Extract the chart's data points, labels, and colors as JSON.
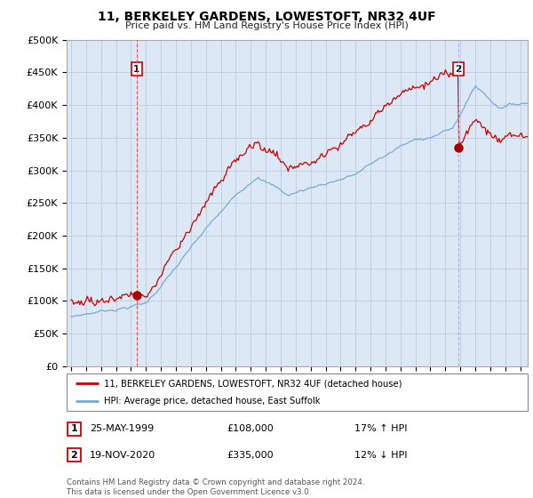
{
  "title": "11, BERKELEY GARDENS, LOWESTOFT, NR32 4UF",
  "subtitle": "Price paid vs. HM Land Registry's House Price Index (HPI)",
  "ylabel_ticks": [
    "£0",
    "£50K",
    "£100K",
    "£150K",
    "£200K",
    "£250K",
    "£300K",
    "£350K",
    "£400K",
    "£450K",
    "£500K"
  ],
  "ytick_values": [
    0,
    50000,
    100000,
    150000,
    200000,
    250000,
    300000,
    350000,
    400000,
    450000,
    500000
  ],
  "ylim": [
    0,
    500000
  ],
  "xlim_start": 1994.7,
  "xlim_end": 2025.5,
  "sale1_year": 1999.38,
  "sale1_price": 108000,
  "sale1_label": "1",
  "sale1_date": "25-MAY-1999",
  "sale1_hpi_pct": "17% ↑ HPI",
  "sale2_year": 2020.88,
  "sale2_price": 335000,
  "sale2_label": "2",
  "sale2_date": "19-NOV-2020",
  "sale2_hpi_pct": "12% ↓ HPI",
  "legend_line1": "11, BERKELEY GARDENS, LOWESTOFT, NR32 4UF (detached house)",
  "legend_line2": "HPI: Average price, detached house, East Suffolk",
  "footnote": "Contains HM Land Registry data © Crown copyright and database right 2024.\nThis data is licensed under the Open Government Licence v3.0.",
  "line_color_red": "#cc0000",
  "line_color_blue": "#7aabce",
  "marker_color_red": "#aa0000",
  "background_color": "#ddeeff",
  "grid_color": "#bbccdd",
  "vline1_color": "#dd4444",
  "vline2_color": "#aaaacc",
  "box_color": "#cc0000",
  "chart_bg": "#dce8f5"
}
